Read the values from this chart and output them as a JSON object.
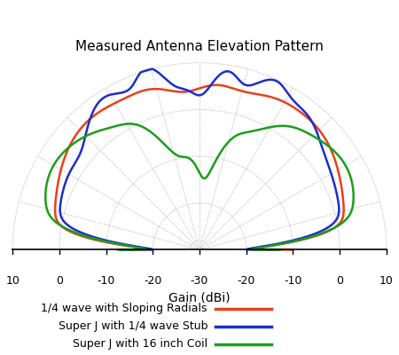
{
  "title": "Measured Antenna Elevation Pattern",
  "xlabel": "Gain (dBi)",
  "legend": [
    {
      "label": "1/4 wave with Sloping Radials",
      "color": "#e8401c"
    },
    {
      "label": "Super J with 1/4 wave Stub",
      "color": "#1a2ecc"
    },
    {
      "label": "Super J with 16 inch Coil",
      "color": "#1a9e1a"
    }
  ],
  "gain_min": -30,
  "gain_max": 10,
  "grid_rings_dBi": [
    -20,
    -10,
    0,
    10
  ],
  "background": "#ffffff",
  "figsize": [
    4.5,
    4.0
  ],
  "dpi": 100,
  "xtick_xs": [
    -40,
    -30,
    -20,
    -10,
    0,
    10,
    20,
    30,
    40
  ],
  "xtick_labels": [
    "10",
    "0",
    "-10",
    "-20",
    "-30",
    "-20",
    "-10",
    "0",
    "10"
  ]
}
